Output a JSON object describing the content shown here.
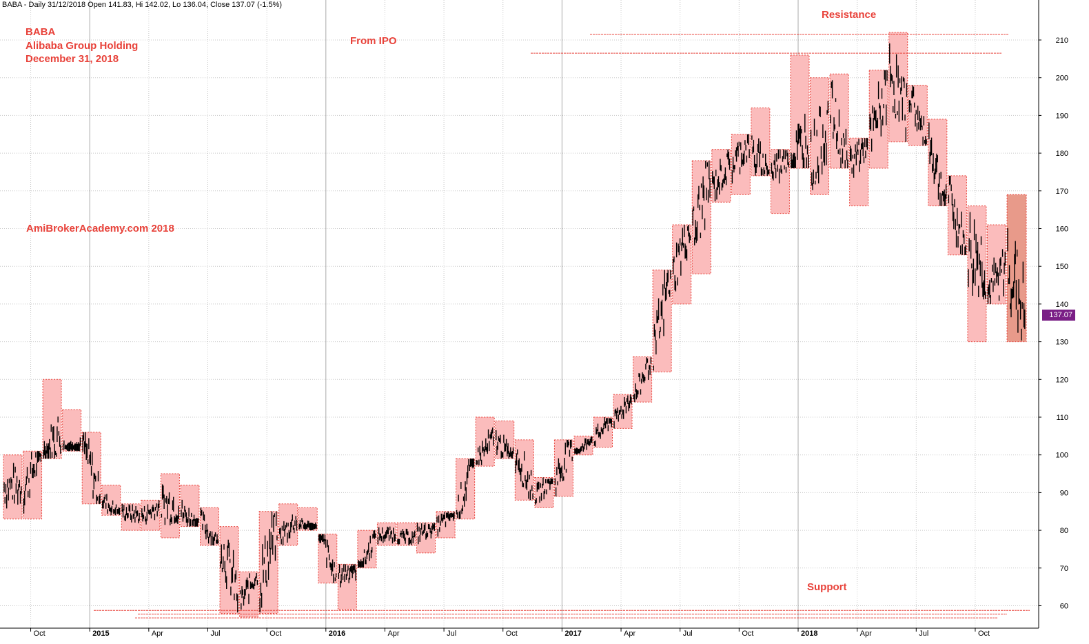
{
  "header": "BABA - Daily 31/12/2018 Open 141.83, Hi 142.02, Lo 136.04, Close 137.07 (-1.5%)",
  "annotations": {
    "ticker": "BABA",
    "company": "Alibaba Group Holding",
    "date": "December 31, 2018",
    "from_ipo": "From IPO",
    "watermark": "AmiBrokerAcademy.com  2018",
    "resistance": "Resistance",
    "support": "Support"
  },
  "last_price_label": "137.07",
  "colors": {
    "annotation": "#e8423a",
    "box_fill": "#fbbcbc",
    "box_fill_last": "#e89a8a",
    "box_border": "#e8423a",
    "price": "#000000",
    "price_tag": "#7a1f86",
    "grid": "#c8c8c8"
  },
  "chart_data": {
    "type": "candlestick",
    "title": "BABA - Daily 31/12/2018",
    "ylim": [
      55,
      215
    ],
    "grid": true,
    "y_ticks": [
      60,
      70,
      80,
      90,
      100,
      110,
      120,
      130,
      140,
      150,
      160,
      170,
      180,
      190,
      200,
      210
    ],
    "x_tick_labels": [
      "Oct",
      "2015",
      "Apr",
      "Jul",
      "Oct",
      "2016",
      "Apr",
      "Jul",
      "Oct",
      "2017",
      "Apr",
      "Jul",
      "Oct",
      "2018",
      "Apr",
      "Jul",
      "Oct"
    ],
    "last_bar": {
      "date": "31/12/2018",
      "open": 141.83,
      "high": 142.02,
      "low": 136.04,
      "close": 137.07,
      "change_pct": -1.5
    },
    "monthly_ranges": [
      {
        "month": "2014-09",
        "low": 83,
        "high": 100
      },
      {
        "month": "2014-10",
        "low": 83,
        "high": 101
      },
      {
        "month": "2014-11",
        "low": 99,
        "high": 120
      },
      {
        "month": "2014-12",
        "low": 101,
        "high": 112
      },
      {
        "month": "2015-01",
        "low": 87,
        "high": 106
      },
      {
        "month": "2015-02",
        "low": 84,
        "high": 92
      },
      {
        "month": "2015-03",
        "low": 80,
        "high": 87
      },
      {
        "month": "2015-04",
        "low": 80,
        "high": 88
      },
      {
        "month": "2015-05",
        "low": 78,
        "high": 95
      },
      {
        "month": "2015-06",
        "low": 81,
        "high": 92
      },
      {
        "month": "2015-07",
        "low": 76,
        "high": 86
      },
      {
        "month": "2015-08",
        "low": 58,
        "high": 81
      },
      {
        "month": "2015-09",
        "low": 57,
        "high": 69
      },
      {
        "month": "2015-10",
        "low": 58,
        "high": 85
      },
      {
        "month": "2015-11",
        "low": 76,
        "high": 87
      },
      {
        "month": "2015-12",
        "low": 80,
        "high": 86
      },
      {
        "month": "2016-01",
        "low": 66,
        "high": 79
      },
      {
        "month": "2016-02",
        "low": 59,
        "high": 71
      },
      {
        "month": "2016-03",
        "low": 70,
        "high": 80
      },
      {
        "month": "2016-04",
        "low": 76,
        "high": 82
      },
      {
        "month": "2016-05",
        "low": 76,
        "high": 82
      },
      {
        "month": "2016-06",
        "low": 74,
        "high": 82
      },
      {
        "month": "2016-07",
        "low": 78,
        "high": 85
      },
      {
        "month": "2016-08",
        "low": 83,
        "high": 99
      },
      {
        "month": "2016-09",
        "low": 97,
        "high": 110
      },
      {
        "month": "2016-10",
        "low": 99,
        "high": 109
      },
      {
        "month": "2016-11",
        "low": 88,
        "high": 104
      },
      {
        "month": "2016-12",
        "low": 86,
        "high": 94
      },
      {
        "month": "2017-01",
        "low": 89,
        "high": 104
      },
      {
        "month": "2017-02",
        "low": 100,
        "high": 105
      },
      {
        "month": "2017-03",
        "low": 102,
        "high": 110
      },
      {
        "month": "2017-04",
        "low": 107,
        "high": 116
      },
      {
        "month": "2017-05",
        "low": 114,
        "high": 126
      },
      {
        "month": "2017-06",
        "low": 122,
        "high": 149
      },
      {
        "month": "2017-07",
        "low": 140,
        "high": 161
      },
      {
        "month": "2017-08",
        "low": 148,
        "high": 178
      },
      {
        "month": "2017-09",
        "low": 167,
        "high": 181
      },
      {
        "month": "2017-10",
        "low": 169,
        "high": 185
      },
      {
        "month": "2017-11",
        "low": 174,
        "high": 192
      },
      {
        "month": "2017-12",
        "low": 164,
        "high": 181
      },
      {
        "month": "2018-01",
        "low": 176,
        "high": 206
      },
      {
        "month": "2018-02",
        "low": 169,
        "high": 200
      },
      {
        "month": "2018-03",
        "low": 176,
        "high": 201
      },
      {
        "month": "2018-04",
        "low": 166,
        "high": 184
      },
      {
        "month": "2018-05",
        "low": 176,
        "high": 202
      },
      {
        "month": "2018-06",
        "low": 183,
        "high": 212
      },
      {
        "month": "2018-07",
        "low": 182,
        "high": 198
      },
      {
        "month": "2018-08",
        "low": 166,
        "high": 189
      },
      {
        "month": "2018-09",
        "low": 153,
        "high": 174
      },
      {
        "month": "2018-10",
        "low": 130,
        "high": 166
      },
      {
        "month": "2018-11",
        "low": 140,
        "high": 161
      },
      {
        "month": "2018-12",
        "low": 130,
        "high": 169
      }
    ],
    "resistance_levels": [
      211.5,
      206.5
    ],
    "support_levels": [
      59.5,
      58.5,
      57.5
    ]
  }
}
